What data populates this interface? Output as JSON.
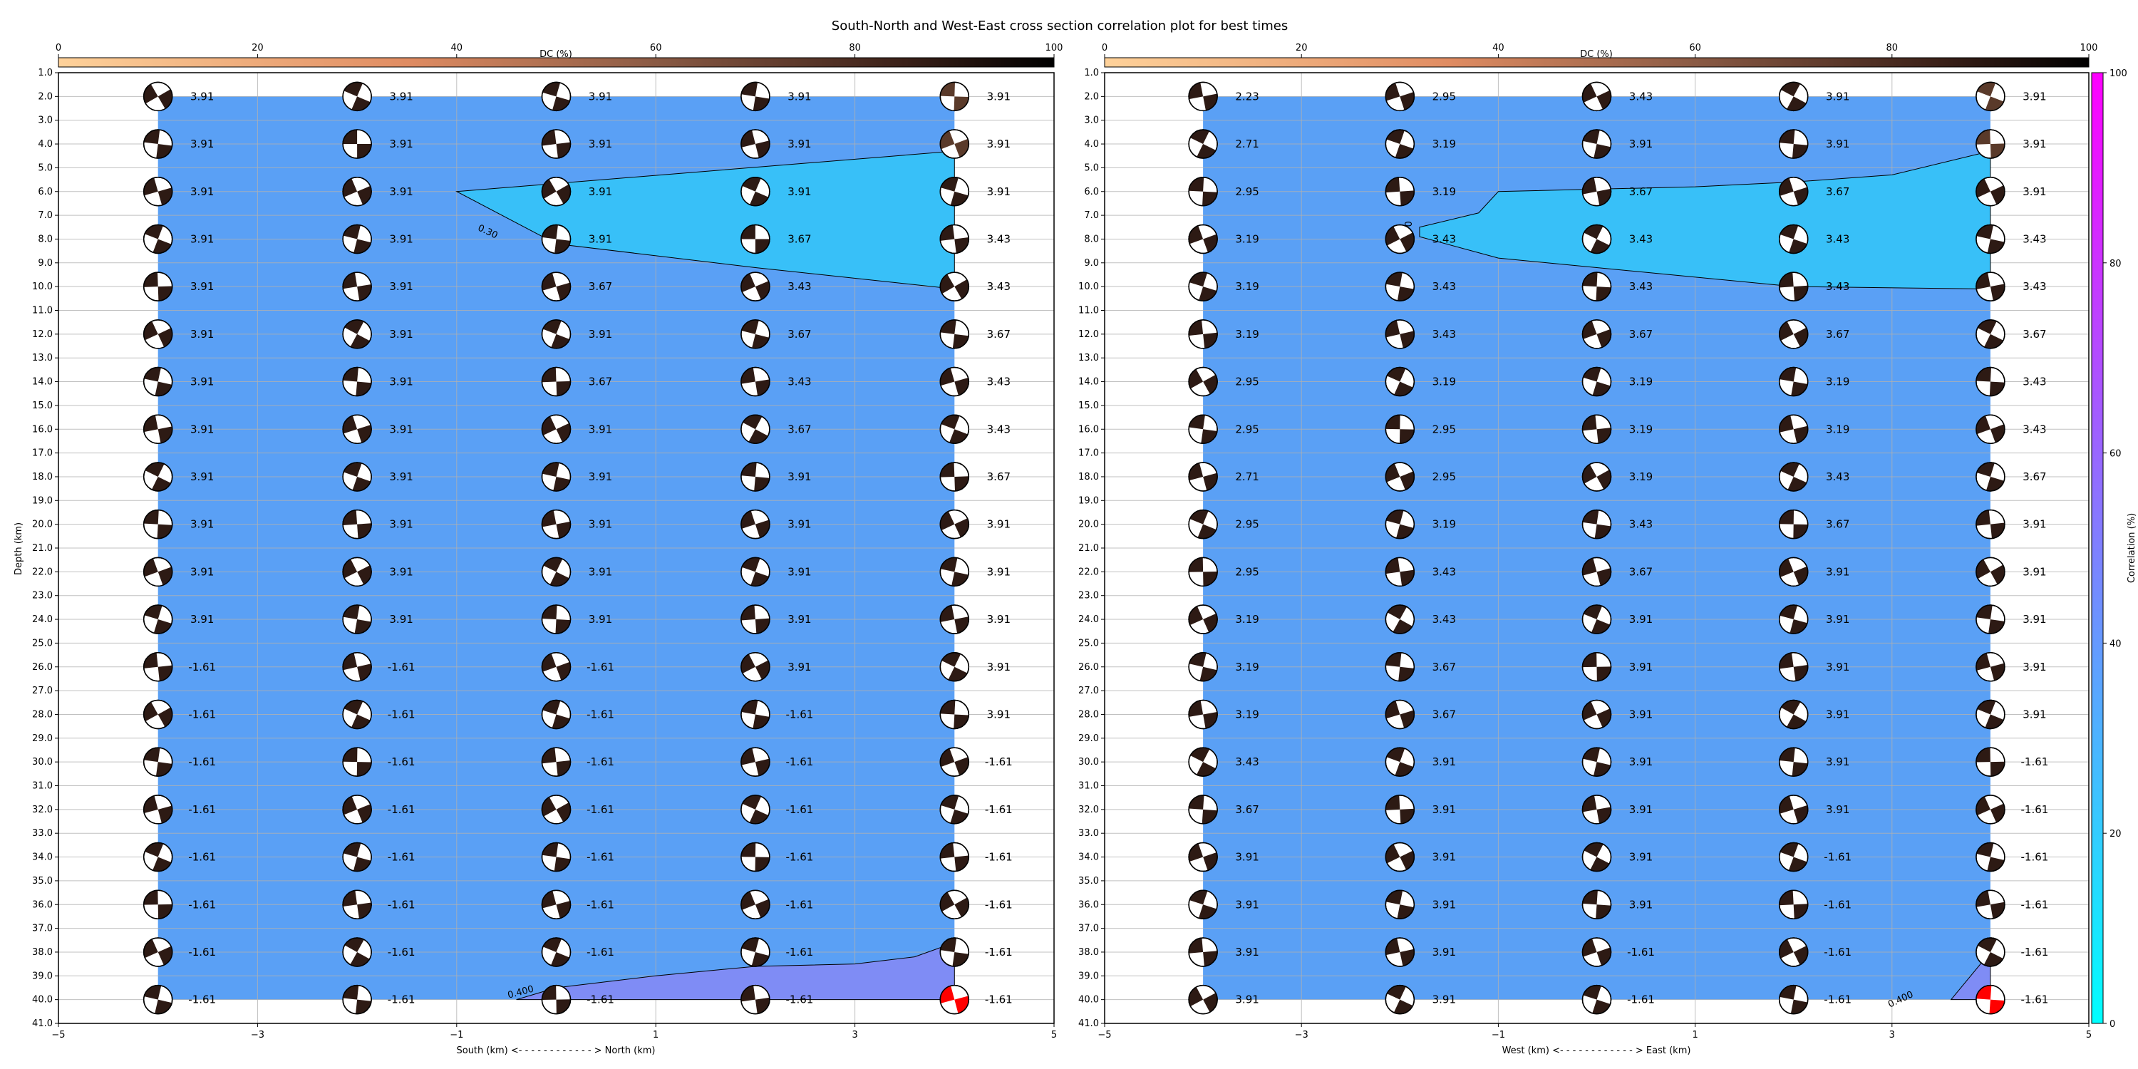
{
  "chart_data": {
    "type": "heatmap",
    "title": "South-North and West-East cross section correlation plot for best times",
    "depths": [
      2.0,
      4.0,
      6.0,
      8.0,
      10.0,
      12.0,
      14.0,
      16.0,
      18.0,
      20.0,
      22.0,
      24.0,
      26.0,
      28.0,
      30.0,
      32.0,
      34.0,
      36.0,
      38.0,
      40.0
    ],
    "positions": [
      -4,
      -2,
      0,
      2,
      4
    ],
    "colorbars": {
      "dc": {
        "label": "DC (%)",
        "ticks": [
          0,
          20,
          40,
          60,
          80,
          100
        ]
      },
      "correlation": {
        "label": "Correlation (%)",
        "ticks": [
          0,
          20,
          40,
          60,
          80,
          100
        ]
      }
    },
    "panels": [
      {
        "xlabel": "South (km) <- - - - - - - - - - - - > North (km)",
        "ylabel": "Depth (km)",
        "xlim": [
          -5,
          5
        ],
        "ylim": [
          41,
          1
        ],
        "x_ticks": [
          "−5",
          "−3",
          "−1",
          "1",
          "3",
          "5"
        ],
        "contour_labels": [
          "0.30",
          "0.400"
        ],
        "columns": [
          [
            "3.91",
            "3.91",
            "3.91",
            "3.91",
            "3.91",
            "3.91",
            "3.91",
            "3.91",
            "3.91",
            "3.91",
            "3.91",
            "3.91",
            "-1.61",
            "-1.61",
            "-1.61",
            "-1.61",
            "-1.61",
            "-1.61",
            "-1.61",
            "-1.61"
          ],
          [
            "3.91",
            "3.91",
            "3.91",
            "3.91",
            "3.91",
            "3.91",
            "3.91",
            "3.91",
            "3.91",
            "3.91",
            "3.91",
            "3.91",
            "-1.61",
            "-1.61",
            "-1.61",
            "-1.61",
            "-1.61",
            "-1.61",
            "-1.61",
            "-1.61"
          ],
          [
            "3.91",
            "3.91",
            "3.91",
            "3.91",
            "3.67",
            "3.91",
            "3.67",
            "3.91",
            "3.91",
            "3.91",
            "3.91",
            "3.91",
            "-1.61",
            "-1.61",
            "-1.61",
            "-1.61",
            "-1.61",
            "-1.61",
            "-1.61",
            "-1.61"
          ],
          [
            "3.91",
            "3.91",
            "3.91",
            "3.67",
            "3.43",
            "3.67",
            "3.43",
            "3.67",
            "3.91",
            "3.91",
            "3.91",
            "3.91",
            "3.91",
            "-1.61",
            "-1.61",
            "-1.61",
            "-1.61",
            "-1.61",
            "-1.61",
            "-1.61"
          ],
          [
            "3.91",
            "3.91",
            "3.91",
            "3.43",
            "3.43",
            "3.67",
            "3.43",
            "3.43",
            "3.67",
            "3.91",
            "3.91",
            "3.91",
            "3.91",
            "3.91",
            "-1.61",
            "-1.61",
            "-1.61",
            "-1.61",
            "-1.61",
            "-1.61"
          ]
        ],
        "correlation_band": {
          "low_region": "interior",
          "mid_region": "upper wedge (depth 4–10 km, x from -1 to 4)",
          "high_region": "bottom right (depth 38–40 km)"
        }
      },
      {
        "xlabel": "West (km) <- - - - - - - - - - - - > East (km)",
        "ylabel": "",
        "xlim": [
          -5,
          5
        ],
        "ylim": [
          41,
          1
        ],
        "x_ticks": [
          "−5",
          "−3",
          "−1",
          "1",
          "3",
          "5"
        ],
        "contour_labels": [
          "0.300",
          "0.400"
        ],
        "columns": [
          [
            "2.23",
            "2.71",
            "2.95",
            "3.19",
            "3.19",
            "3.19",
            "2.95",
            "2.95",
            "2.71",
            "2.95",
            "2.95",
            "3.19",
            "3.19",
            "3.19",
            "3.43",
            "3.67",
            "3.91",
            "3.91",
            "3.91",
            "3.91"
          ],
          [
            "2.95",
            "3.19",
            "3.19",
            "3.43",
            "3.43",
            "3.43",
            "3.19",
            "2.95",
            "2.95",
            "3.19",
            "3.43",
            "3.43",
            "3.67",
            "3.67",
            "3.91",
            "3.91",
            "3.91",
            "3.91",
            "3.91",
            "3.91"
          ],
          [
            "3.43",
            "3.91",
            "3.67",
            "3.43",
            "3.43",
            "3.67",
            "3.19",
            "3.19",
            "3.19",
            "3.43",
            "3.67",
            "3.91",
            "3.91",
            "3.91",
            "3.91",
            "3.91",
            "3.91",
            "3.91",
            "-1.61",
            "-1.61"
          ],
          [
            "3.91",
            "3.91",
            "3.67",
            "3.43",
            "3.43",
            "3.67",
            "3.19",
            "3.19",
            "3.43",
            "3.67",
            "3.91",
            "3.91",
            "3.91",
            "3.91",
            "3.91",
            "3.91",
            "-1.61",
            "-1.61",
            "-1.61",
            "-1.61"
          ],
          [
            "3.91",
            "3.91",
            "3.91",
            "3.43",
            "3.43",
            "3.67",
            "3.43",
            "3.43",
            "3.67",
            "3.91",
            "3.91",
            "3.91",
            "3.91",
            "3.91",
            "-1.61",
            "-1.61",
            "-1.61",
            "-1.61",
            "-1.61",
            "-1.61"
          ]
        ],
        "correlation_band": {
          "low_region": "interior",
          "mid_region": "upper wedge (depth 4–10 km, x from -1.8 to 4)",
          "high_region": "bottom right (depth 38–40 km)"
        }
      }
    ],
    "highlight": {
      "description": "best solution beachball in red",
      "panel_positions": [
        4,
        4
      ],
      "depth": 40.0
    }
  }
}
